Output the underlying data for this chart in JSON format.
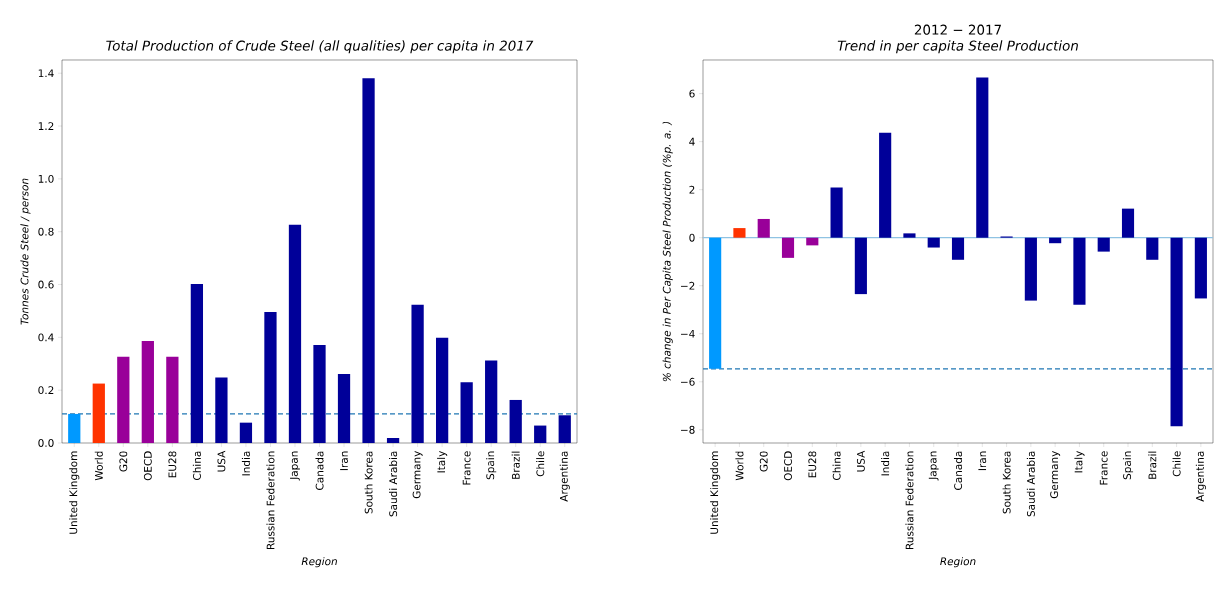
{
  "chart_data": [
    {
      "type": "bar",
      "title": "Total Production of Crude Steel (all qualities) per capita in 2017",
      "xlabel": "Region",
      "ylabel": "Tonnes Crude Steel / person",
      "categories": [
        "United Kingdom",
        "World",
        "G20",
        "OECD",
        "EU28",
        "China",
        "USA",
        "India",
        "Russian Federation",
        "Japan",
        "Canada",
        "Iran",
        "South Korea",
        "Saudi Arabia",
        "Germany",
        "Italy",
        "France",
        "Spain",
        "Brazil",
        "Chile",
        "Argentina"
      ],
      "values": [
        0.11,
        0.225,
        0.327,
        0.386,
        0.327,
        0.602,
        0.248,
        0.077,
        0.496,
        0.826,
        0.371,
        0.261,
        1.381,
        0.019,
        0.523,
        0.398,
        0.23,
        0.312,
        0.163,
        0.066,
        0.105
      ],
      "colors": [
        "#0099ff",
        "#ff3300",
        "#990099",
        "#990099",
        "#990099",
        "#000099",
        "#000099",
        "#000099",
        "#000099",
        "#000099",
        "#000099",
        "#000099",
        "#000099",
        "#000099",
        "#000099",
        "#000099",
        "#000099",
        "#000099",
        "#000099",
        "#000099",
        "#000099"
      ],
      "ylim": [
        0,
        1.45
      ],
      "yticks": [
        {
          "value": 0,
          "label": "0.0"
        },
        0.2,
        0.4,
        0.6,
        0.8,
        {
          "value": 1,
          "label": "1.0"
        },
        1.2,
        1.4
      ],
      "ref_lines": [
        {
          "axis": "y",
          "value": 0.11,
          "color": "#1f77b4",
          "line_style": "dashed"
        }
      ]
    },
    {
      "type": "bar",
      "title": "2012 − 2017",
      "subtitle": "Trend in per capita Steel Production",
      "xlabel": "Region",
      "ylabel": "% change in Per Capita Steel Production (%p. a. )",
      "categories": [
        "United Kingdom",
        "World",
        "G20",
        "OECD",
        "EU28",
        "China",
        "USA",
        "India",
        "Russian Federation",
        "Japan",
        "Canada",
        "Iran",
        "South Korea",
        "Saudi Arabia",
        "Germany",
        "Italy",
        "France",
        "Spain",
        "Brazil",
        "Chile",
        "Argentina"
      ],
      "values": [
        -5.46,
        0.4,
        0.78,
        -0.84,
        -0.32,
        2.09,
        -2.35,
        4.37,
        0.18,
        -0.41,
        -0.92,
        6.67,
        0.05,
        -2.62,
        -0.23,
        -2.79,
        -0.58,
        1.21,
        -0.92,
        -7.85,
        -2.53
      ],
      "colors": [
        "#0099ff",
        "#ff3300",
        "#990099",
        "#990099",
        "#990099",
        "#000099",
        "#000099",
        "#000099",
        "#000099",
        "#000099",
        "#000099",
        "#000099",
        "#000099",
        "#000099",
        "#000099",
        "#000099",
        "#000099",
        "#000099",
        "#000099",
        "#000099",
        "#000099"
      ],
      "ylim": [
        -8.55,
        7.4
      ],
      "yticks": [
        {
          "value": -8,
          "label": "−8"
        },
        {
          "value": -6,
          "label": "−6"
        },
        {
          "value": -4,
          "label": "−4"
        },
        {
          "value": -2,
          "label": "−2"
        },
        0,
        2,
        4,
        6
      ],
      "ref_lines": [
        {
          "axis": "y",
          "value": 0,
          "color": "#8fc3e3",
          "line_style": "solid"
        },
        {
          "axis": "y",
          "value": -5.46,
          "color": "#1f77b4",
          "line_style": "dashed"
        }
      ]
    }
  ]
}
